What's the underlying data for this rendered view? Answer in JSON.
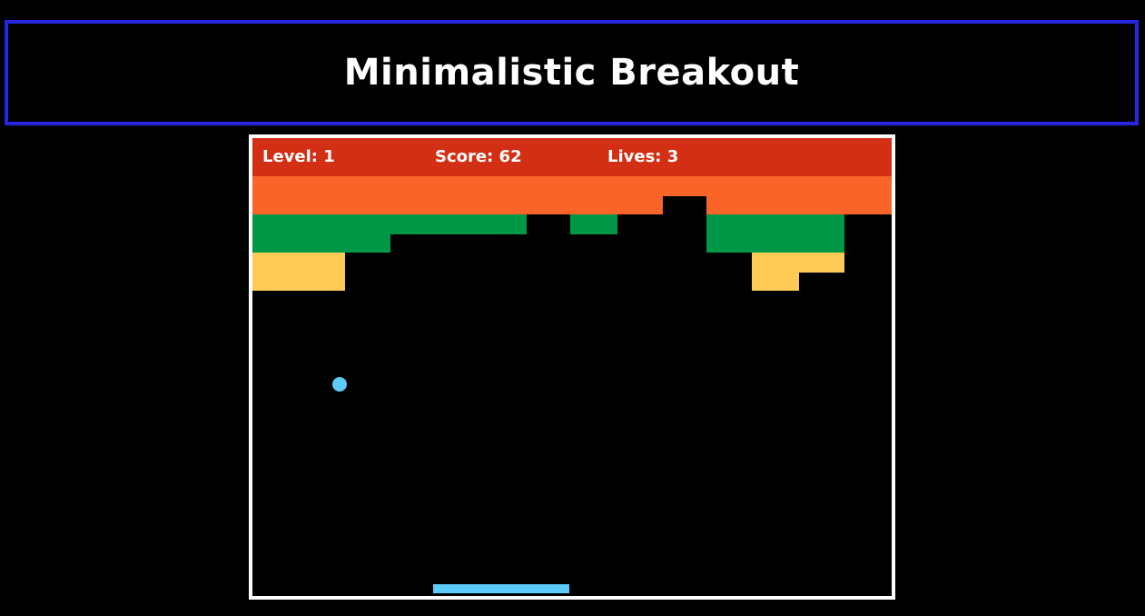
{
  "title": "Minimalistic Breakout",
  "hud": {
    "level_label": "Level: 1",
    "score_label": "Score: 62",
    "lives_label": "Lives: 3"
  },
  "colors": {
    "background": "#000000",
    "title_border": "#2626e0",
    "frame_border": "#ffffff",
    "hud_bar": "#d22f14",
    "row_orange": "#fb6428",
    "row_green": "#009846",
    "row_yellow": "#ffc955",
    "ball": "#5ccbfa",
    "paddle": "#5ccbfa"
  },
  "game": {
    "level": 1,
    "score": 62,
    "lives": 3
  }
}
